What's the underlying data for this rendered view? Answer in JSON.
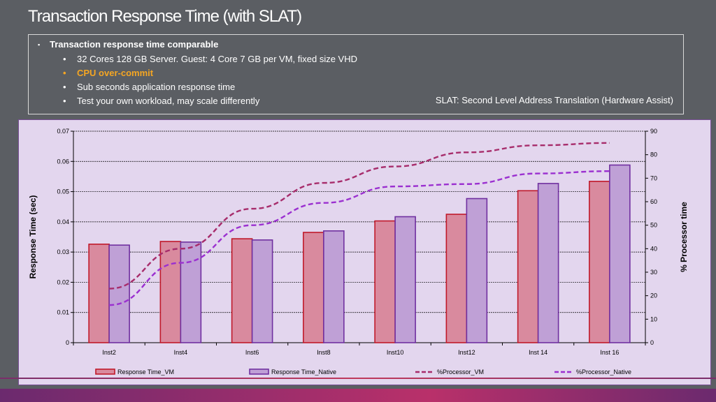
{
  "slide": {
    "title": "Transaction Response Time (with SLAT)",
    "main_bullet": "Transaction response time comparable",
    "sub_bullets": [
      "32  Cores 128 GB Server.  Guest:  4 Core 7 GB per VM, fixed size VHD",
      "CPU over-commit",
      "Sub seconds application response time",
      "Test your own workload, may scale differently"
    ],
    "slat_note": "SLAT: Second Level Address Translation (Hardware Assist)",
    "bullet_marker": "▪",
    "sub_marker": "•"
  },
  "colors": {
    "vm_fill": "#d98a9e",
    "vm_stroke": "#c0192a",
    "native_fill": "#bfa0d6",
    "native_stroke": "#7030a0",
    "vm_line": "#a72c6b",
    "native_line": "#9b30d0",
    "highlight": "#f5a623"
  },
  "chart_data": {
    "type": "bar",
    "categories": [
      "Inst2",
      "Inst4",
      "Inst6",
      "Inst8",
      "Inst10",
      "Inst12",
      "Inst 14",
      "Inst 16"
    ],
    "series": [
      {
        "name": "Response Time_VM",
        "type": "bar",
        "axis": "left",
        "values": [
          0.0326,
          0.0335,
          0.0344,
          0.0365,
          0.0403,
          0.0425,
          0.0503,
          0.0534
        ]
      },
      {
        "name": "Response Time_Native",
        "type": "bar",
        "axis": "left",
        "values": [
          0.0323,
          0.0333,
          0.034,
          0.037,
          0.0417,
          0.0477,
          0.0527,
          0.0588
        ]
      },
      {
        "name": "%Processor_VM",
        "type": "line",
        "style": "dashed",
        "axis": "right",
        "values": [
          23,
          40,
          57,
          68,
          75,
          81,
          84,
          85
        ]
      },
      {
        "name": "%Processor_Native",
        "type": "line",
        "style": "dashed",
        "axis": "right",
        "values": [
          16,
          34,
          50,
          59.5,
          66.5,
          67.5,
          72,
          73
        ]
      }
    ],
    "ylabel": "Response Time (sec)",
    "y2label": "% Processor time",
    "ylim": [
      0,
      0.07
    ],
    "y2lim": [
      0,
      90
    ],
    "yticks": [
      "0",
      "0.01",
      "0.02",
      "0.03",
      "0.04",
      "0.05",
      "0.06",
      "0.07"
    ],
    "y2ticks": [
      "0",
      "10",
      "20",
      "30",
      "40",
      "50",
      "60",
      "70",
      "80",
      "90"
    ],
    "grid": true,
    "legend_position": "bottom"
  }
}
